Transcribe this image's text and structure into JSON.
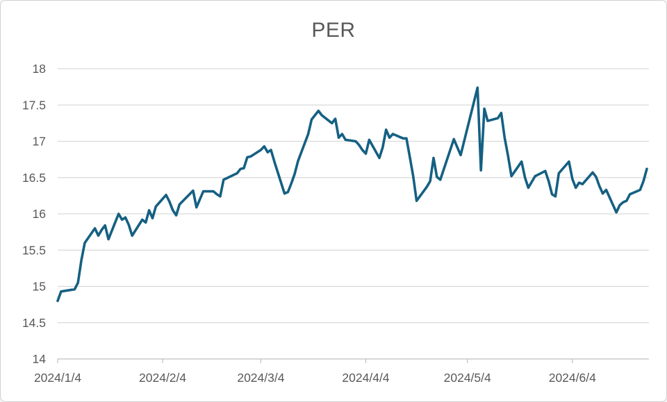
{
  "window": {
    "background": "#ffffff",
    "border_color": "#d0d0d0"
  },
  "chart_data": {
    "type": "line",
    "title": "PER",
    "legend": "none",
    "grid": true,
    "colors": {
      "series": "#156082",
      "title_text": "#595959",
      "axis_label_text": "#595959",
      "gridline": "#d9d9d9",
      "axis_line": "#bfbfbf"
    },
    "y_axis": {
      "min": 14,
      "max": 18,
      "step": 0.5,
      "tick_labels": [
        "14",
        "14.5",
        "15",
        "15.5",
        "16",
        "16.5",
        "17",
        "17.5",
        "18"
      ],
      "tick_values": [
        14,
        14.5,
        15,
        15.5,
        16,
        16.5,
        17,
        17.5,
        18
      ]
    },
    "x_axis": {
      "tick_labels": [
        "2024/1/4",
        "2024/2/4",
        "2024/3/4",
        "2024/4/4",
        "2024/5/4",
        "2024/6/4"
      ],
      "tick_dates": [
        "2024/1/4",
        "2024/2/4",
        "2024/3/4",
        "2024/4/4",
        "2024/5/4",
        "2024/6/4"
      ],
      "start_date": "2024/1/4",
      "end_date": "2024/6/26"
    },
    "series": [
      {
        "name": "PER",
        "color": "#156082",
        "points": [
          [
            "2024/1/4",
            14.8
          ],
          [
            "2024/1/5",
            14.93
          ],
          [
            "2024/1/9",
            14.96
          ],
          [
            "2024/1/10",
            15.05
          ],
          [
            "2024/1/11",
            15.36
          ],
          [
            "2024/1/12",
            15.6
          ],
          [
            "2024/1/15",
            15.8
          ],
          [
            "2024/1/16",
            15.7
          ],
          [
            "2024/1/17",
            15.78
          ],
          [
            "2024/1/18",
            15.84
          ],
          [
            "2024/1/19",
            15.65
          ],
          [
            "2024/1/22",
            16.0
          ],
          [
            "2024/1/23",
            15.92
          ],
          [
            "2024/1/24",
            15.95
          ],
          [
            "2024/1/25",
            15.85
          ],
          [
            "2024/1/26",
            15.7
          ],
          [
            "2024/1/29",
            15.92
          ],
          [
            "2024/1/30",
            15.88
          ],
          [
            "2024/1/31",
            16.05
          ],
          [
            "2024/2/1",
            15.94
          ],
          [
            "2024/2/2",
            16.1
          ],
          [
            "2024/2/5",
            16.26
          ],
          [
            "2024/2/6",
            16.17
          ],
          [
            "2024/2/7",
            16.05
          ],
          [
            "2024/2/8",
            15.98
          ],
          [
            "2024/2/9",
            16.13
          ],
          [
            "2024/2/13",
            16.32
          ],
          [
            "2024/2/14",
            16.09
          ],
          [
            "2024/2/15",
            16.2
          ],
          [
            "2024/2/16",
            16.31
          ],
          [
            "2024/2/19",
            16.31
          ],
          [
            "2024/2/20",
            16.27
          ],
          [
            "2024/2/21",
            16.24
          ],
          [
            "2024/2/22",
            16.47
          ],
          [
            "2024/2/26",
            16.56
          ],
          [
            "2024/2/27",
            16.62
          ],
          [
            "2024/2/28",
            16.63
          ],
          [
            "2024/2/29",
            16.78
          ],
          [
            "2024/3/1",
            16.79
          ],
          [
            "2024/3/4",
            16.88
          ],
          [
            "2024/3/5",
            16.93
          ],
          [
            "2024/3/6",
            16.85
          ],
          [
            "2024/3/7",
            16.88
          ],
          [
            "2024/3/8",
            16.72
          ],
          [
            "2024/3/11",
            16.28
          ],
          [
            "2024/3/12",
            16.3
          ],
          [
            "2024/3/13",
            16.42
          ],
          [
            "2024/3/14",
            16.55
          ],
          [
            "2024/3/15",
            16.73
          ],
          [
            "2024/3/18",
            17.1
          ],
          [
            "2024/3/19",
            17.3
          ],
          [
            "2024/3/21",
            17.42
          ],
          [
            "2024/3/22",
            17.36
          ],
          [
            "2024/3/25",
            17.25
          ],
          [
            "2024/3/26",
            17.31
          ],
          [
            "2024/3/27",
            17.05
          ],
          [
            "2024/3/28",
            17.1
          ],
          [
            "2024/3/29",
            17.02
          ],
          [
            "2024/4/1",
            17.0
          ],
          [
            "2024/4/2",
            16.95
          ],
          [
            "2024/4/3",
            16.88
          ],
          [
            "2024/4/4",
            16.83
          ],
          [
            "2024/4/5",
            17.02
          ],
          [
            "2024/4/8",
            16.77
          ],
          [
            "2024/4/9",
            16.92
          ],
          [
            "2024/4/10",
            17.16
          ],
          [
            "2024/4/11",
            17.05
          ],
          [
            "2024/4/12",
            17.1
          ],
          [
            "2024/4/15",
            17.04
          ],
          [
            "2024/4/16",
            17.04
          ],
          [
            "2024/4/17",
            16.78
          ],
          [
            "2024/4/18",
            16.52
          ],
          [
            "2024/4/19",
            16.18
          ],
          [
            "2024/4/22",
            16.37
          ],
          [
            "2024/4/23",
            16.45
          ],
          [
            "2024/4/24",
            16.77
          ],
          [
            "2024/4/25",
            16.51
          ],
          [
            "2024/4/26",
            16.47
          ],
          [
            "2024/4/30",
            17.03
          ],
          [
            "2024/5/1",
            16.92
          ],
          [
            "2024/5/2",
            16.81
          ],
          [
            "2024/5/7",
            17.74
          ],
          [
            "2024/5/8",
            16.6
          ],
          [
            "2024/5/9",
            17.45
          ],
          [
            "2024/5/10",
            17.28
          ],
          [
            "2024/5/13",
            17.32
          ],
          [
            "2024/5/14",
            17.39
          ],
          [
            "2024/5/15",
            17.05
          ],
          [
            "2024/5/16",
            16.8
          ],
          [
            "2024/5/17",
            16.52
          ],
          [
            "2024/5/20",
            16.72
          ],
          [
            "2024/5/21",
            16.5
          ],
          [
            "2024/5/22",
            16.36
          ],
          [
            "2024/5/23",
            16.44
          ],
          [
            "2024/5/24",
            16.52
          ],
          [
            "2024/5/27",
            16.59
          ],
          [
            "2024/5/28",
            16.45
          ],
          [
            "2024/5/29",
            16.27
          ],
          [
            "2024/5/30",
            16.24
          ],
          [
            "2024/5/31",
            16.56
          ],
          [
            "2024/6/3",
            16.72
          ],
          [
            "2024/6/4",
            16.48
          ],
          [
            "2024/6/5",
            16.36
          ],
          [
            "2024/6/6",
            16.43
          ],
          [
            "2024/6/7",
            16.41
          ],
          [
            "2024/6/10",
            16.57
          ],
          [
            "2024/6/11",
            16.51
          ],
          [
            "2024/6/12",
            16.38
          ],
          [
            "2024/6/13",
            16.28
          ],
          [
            "2024/6/14",
            16.33
          ],
          [
            "2024/6/17",
            16.02
          ],
          [
            "2024/6/18",
            16.12
          ],
          [
            "2024/6/19",
            16.16
          ],
          [
            "2024/6/20",
            16.18
          ],
          [
            "2024/6/21",
            16.27
          ],
          [
            "2024/6/24",
            16.33
          ],
          [
            "2024/6/25",
            16.45
          ],
          [
            "2024/6/26",
            16.62
          ]
        ]
      }
    ]
  }
}
